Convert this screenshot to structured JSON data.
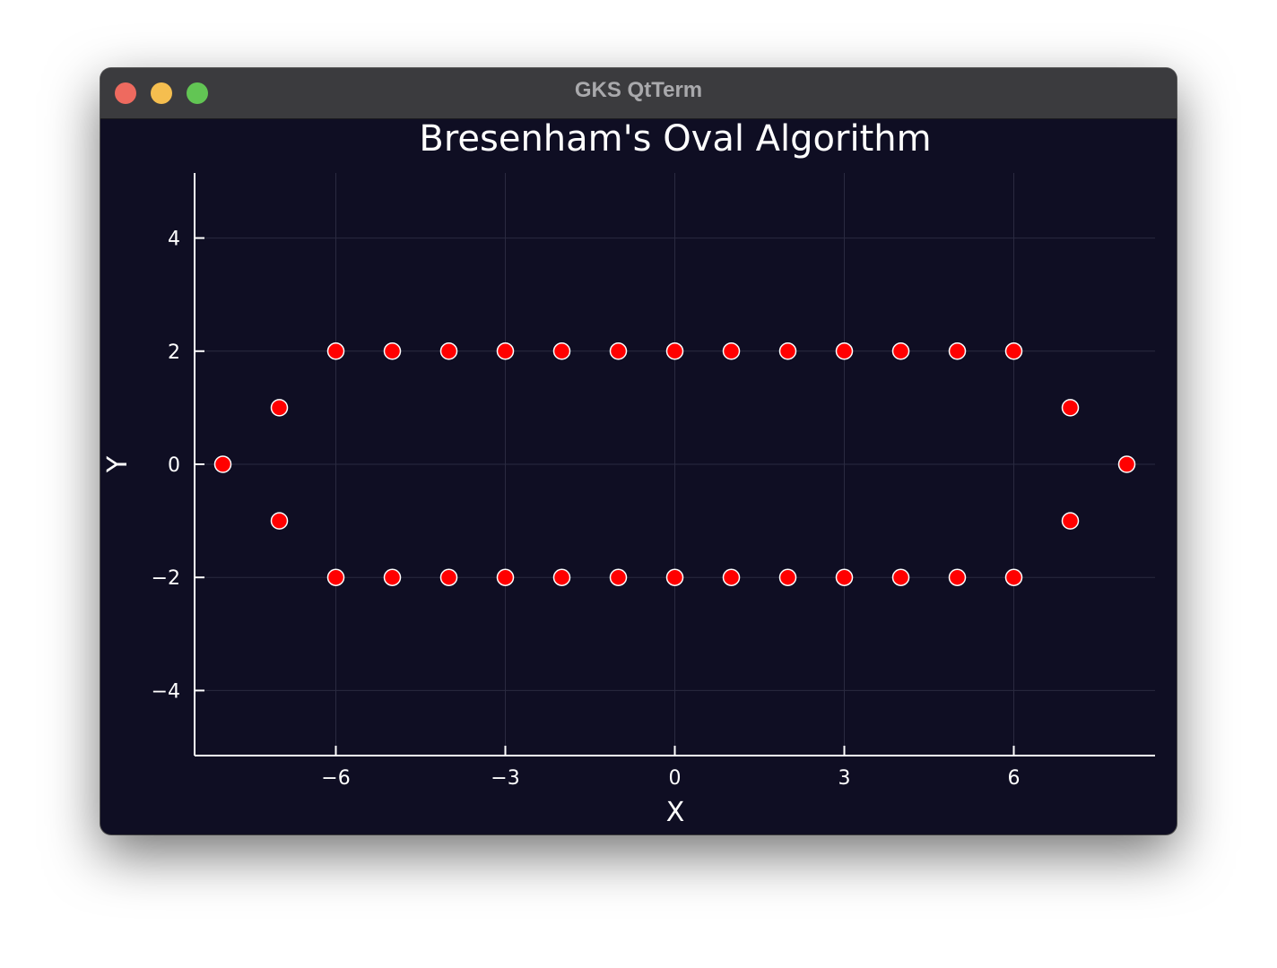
{
  "window": {
    "title": "GKS QtTerm"
  },
  "chart_data": {
    "type": "scatter",
    "title": "Bresenham's Oval Algorithm",
    "xlabel": "X",
    "ylabel": "Y",
    "xlim": [
      -8.5,
      8.5
    ],
    "ylim": [
      -5.15,
      5.15
    ],
    "xticks": [
      -6,
      -3,
      0,
      3,
      6
    ],
    "xtick_labels": [
      "−6",
      "−3",
      "0",
      "3",
      "6"
    ],
    "yticks": [
      -4,
      -2,
      0,
      2,
      4
    ],
    "ytick_labels": [
      "−4",
      "−2",
      "0",
      "2",
      "4"
    ],
    "grid": true,
    "legend": "none",
    "colors": {
      "background": "#0f0e23",
      "marker_fill": "#ff0000",
      "marker_stroke": "#ffffff",
      "axis": "#ffffff",
      "grid": "#2a2a40",
      "text": "#ffffff"
    },
    "series": [
      {
        "points": [
          [
            -8,
            0
          ],
          [
            -7,
            1
          ],
          [
            -7,
            -1
          ],
          [
            -6,
            2
          ],
          [
            -5,
            2
          ],
          [
            -4,
            2
          ],
          [
            -3,
            2
          ],
          [
            -2,
            2
          ],
          [
            -1,
            2
          ],
          [
            0,
            2
          ],
          [
            1,
            2
          ],
          [
            2,
            2
          ],
          [
            3,
            2
          ],
          [
            4,
            2
          ],
          [
            5,
            2
          ],
          [
            6,
            2
          ],
          [
            -6,
            -2
          ],
          [
            -5,
            -2
          ],
          [
            -4,
            -2
          ],
          [
            -3,
            -2
          ],
          [
            -2,
            -2
          ],
          [
            -1,
            -2
          ],
          [
            0,
            -2
          ],
          [
            1,
            -2
          ],
          [
            2,
            -2
          ],
          [
            3,
            -2
          ],
          [
            4,
            -2
          ],
          [
            5,
            -2
          ],
          [
            6,
            -2
          ],
          [
            7,
            1
          ],
          [
            7,
            -1
          ],
          [
            8,
            0
          ]
        ]
      }
    ]
  }
}
